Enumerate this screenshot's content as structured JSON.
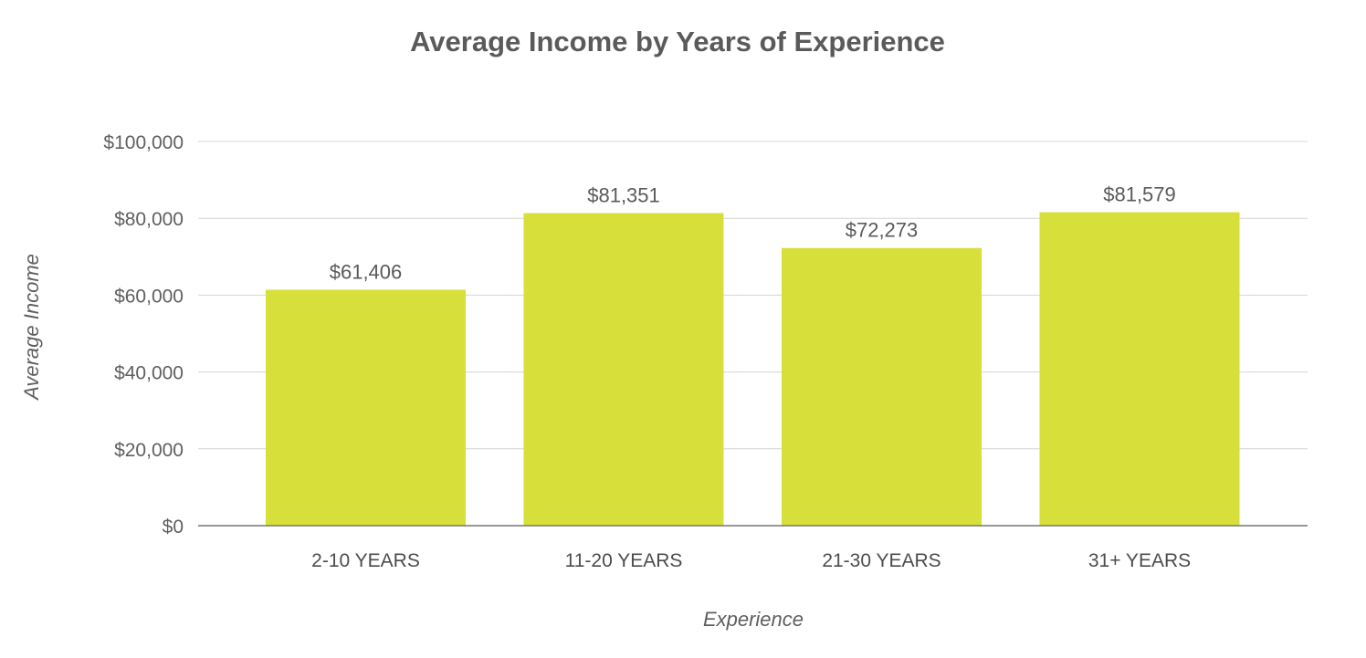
{
  "chart_data": {
    "type": "bar",
    "title": "Average Income by Years of Experience",
    "xlabel": "Experience",
    "ylabel": "Average Income",
    "categories": [
      "2-10 YEARS",
      "11-20 YEARS",
      "21-30 YEARS",
      "31+ YEARS"
    ],
    "values": [
      61406,
      81351,
      72273,
      81579
    ],
    "data_labels": [
      "$61,406",
      "$81,351",
      "$72,273",
      "$81,579"
    ],
    "ylim": [
      0,
      100000
    ],
    "yticks": [
      0,
      20000,
      40000,
      60000,
      80000,
      100000
    ],
    "ytick_labels": [
      "$0",
      "$20,000",
      "$40,000",
      "$60,000",
      "$80,000",
      "$100,000"
    ],
    "grid": true,
    "legend": "none",
    "colors": {
      "bar": "#d7df3a",
      "text": "#5a5a5a",
      "grid": "#d4d4d4",
      "axis": "#777777"
    }
  }
}
